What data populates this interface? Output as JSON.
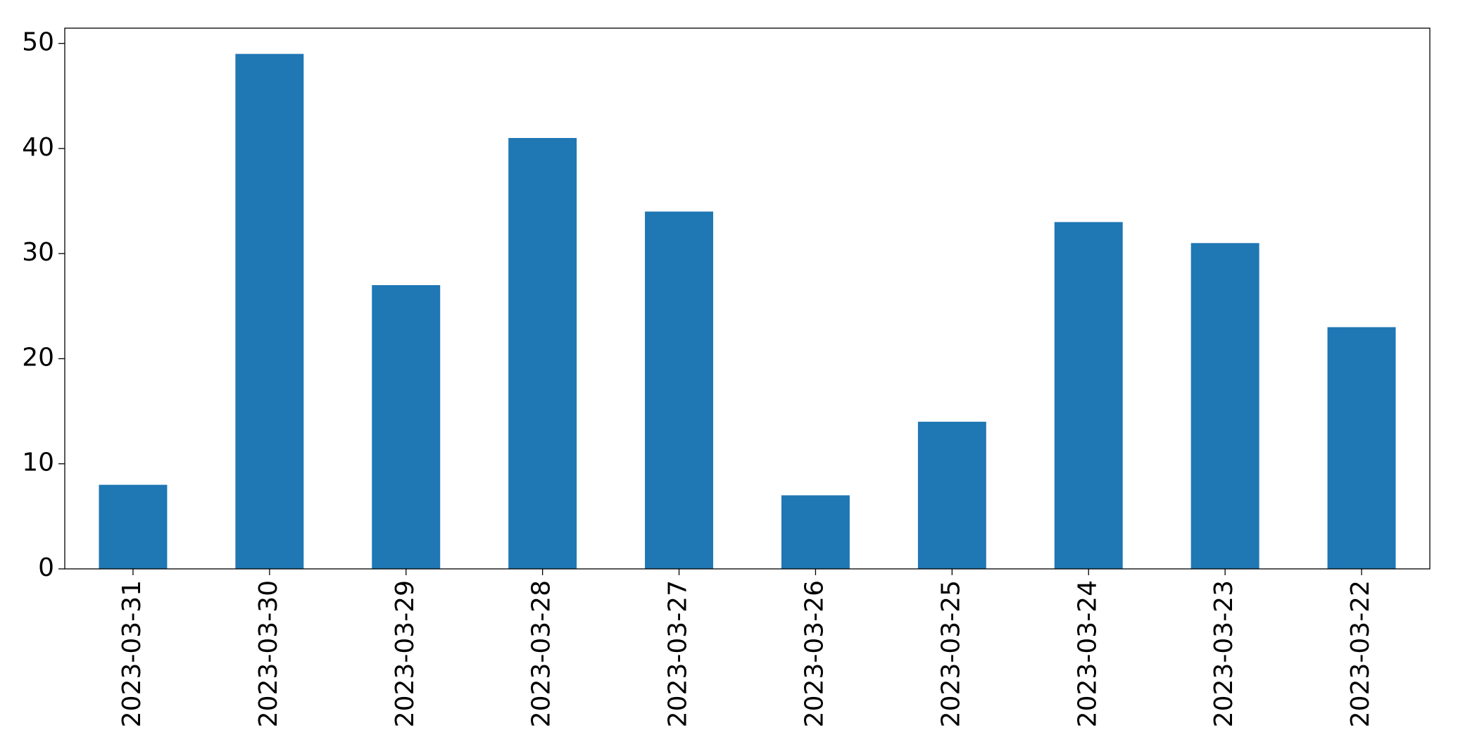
{
  "chart_data": {
    "type": "bar",
    "categories": [
      "2023-03-31",
      "2023-03-30",
      "2023-03-29",
      "2023-03-28",
      "2023-03-27",
      "2023-03-26",
      "2023-03-25",
      "2023-03-24",
      "2023-03-23",
      "2023-03-22"
    ],
    "values": [
      8,
      49,
      27,
      41,
      34,
      7,
      14,
      33,
      31,
      23
    ],
    "color": "#1f77b4",
    "ylim": [
      0,
      51.45
    ],
    "yticks": [
      0,
      10,
      20,
      30,
      40,
      50
    ],
    "grid": false
  }
}
